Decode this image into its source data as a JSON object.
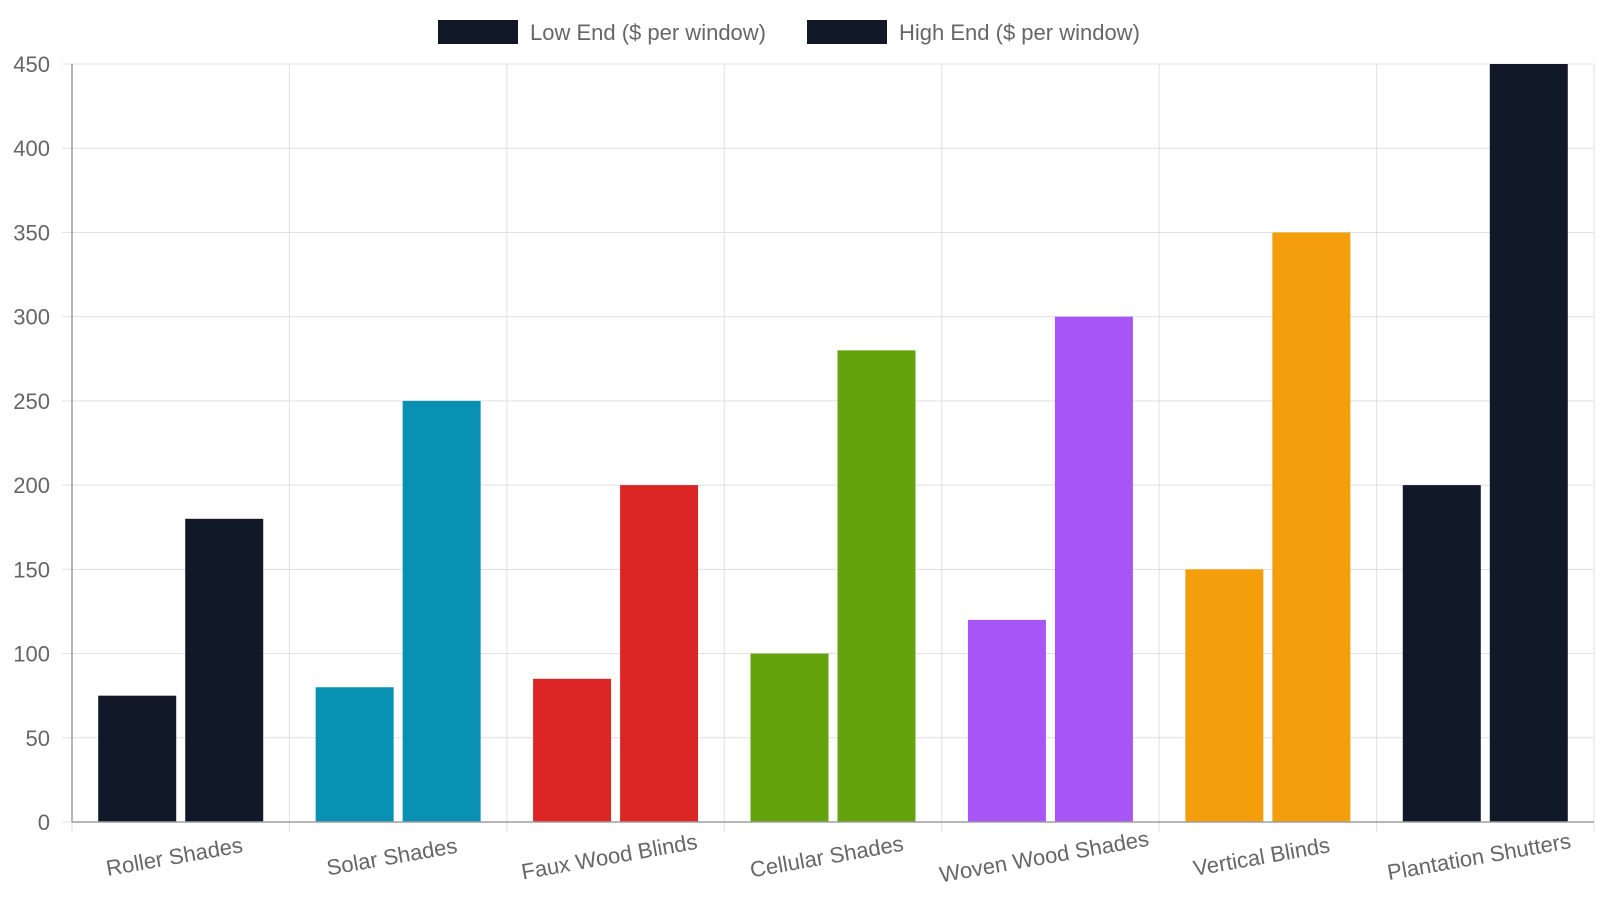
{
  "chart_data": {
    "type": "bar",
    "categories": [
      "Roller Shades",
      "Solar Shades",
      "Faux Wood Blinds",
      "Cellular Shades",
      "Woven Wood Shades",
      "Vertical Blinds",
      "Plantation Shutters"
    ],
    "series": [
      {
        "name": "Low End ($ per window)",
        "values": [
          75,
          80,
          85,
          100,
          120,
          150,
          200
        ]
      },
      {
        "name": "High End ($ per window)",
        "values": [
          180,
          250,
          200,
          280,
          300,
          350,
          450
        ]
      }
    ],
    "category_colors": [
      "#111827",
      "#0891b2",
      "#dc2626",
      "#65a30d",
      "#a855f7",
      "#f59e0b",
      "#111827"
    ],
    "legend_color": "#111827",
    "legend_position": "top",
    "ylim": [
      0,
      450
    ],
    "yticks": [
      0,
      50,
      100,
      150,
      200,
      250,
      300,
      350,
      400,
      450
    ],
    "grid": true
  }
}
